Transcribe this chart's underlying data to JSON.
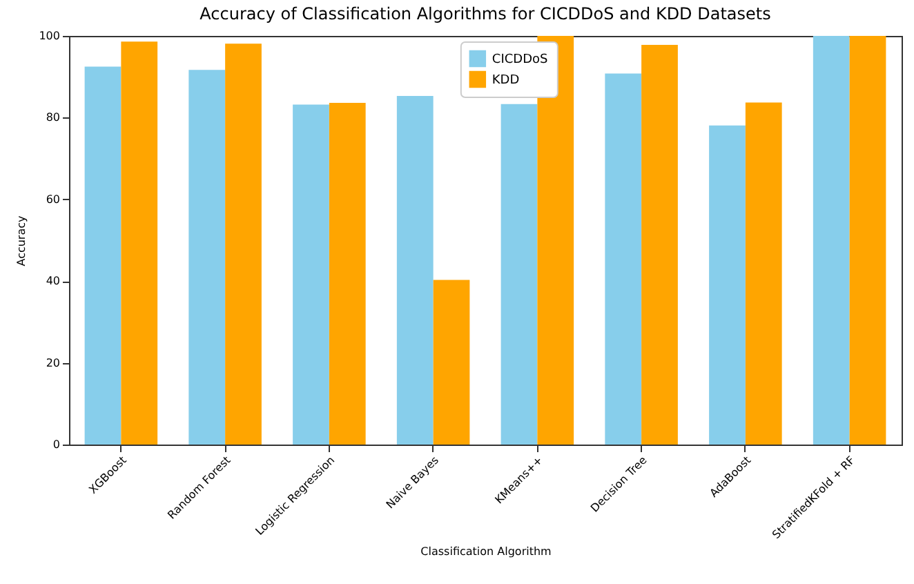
{
  "chart_data": {
    "type": "bar",
    "title": "Accuracy of Classification Algorithms for CICDDoS and KDD Datasets",
    "xlabel": "Classification Algorithm",
    "ylabel": "Accuracy",
    "categories": [
      "XGBoost",
      "Random Forest",
      "Logistic Regression",
      "Naive Bayes",
      "KMeans++",
      "Decision Tree",
      "AdaBoost",
      "StratifiedKFold + RF"
    ],
    "series": [
      {
        "name": "CICDDoS",
        "color": "#87ceeb",
        "values": [
          92.5,
          91.7,
          83.2,
          85.3,
          83.3,
          90.8,
          78.1,
          100
        ]
      },
      {
        "name": "KDD",
        "color": "#ffa500",
        "values": [
          98.6,
          98.1,
          83.6,
          40.3,
          100,
          97.8,
          83.7,
          100
        ]
      }
    ],
    "ylim": [
      0,
      100
    ],
    "yticks": [
      0,
      20,
      40,
      60,
      80,
      100
    ],
    "legend": "top",
    "grid": false
  }
}
